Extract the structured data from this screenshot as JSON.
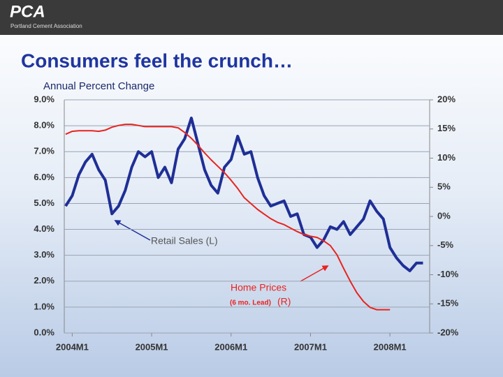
{
  "header": {
    "logo": "PCA",
    "org": "Portland Cement Association"
  },
  "chart_data": {
    "type": "line",
    "title": "Consumers feel the crunch…",
    "y_label": "Annual Percent Change",
    "x": [
      -1,
      0,
      1,
      2,
      3,
      4,
      5,
      6,
      7,
      8,
      9,
      10,
      11,
      12,
      13,
      14,
      15,
      16,
      17,
      18,
      19,
      20,
      21,
      22,
      23,
      24,
      25,
      26,
      27,
      28,
      29,
      30,
      31,
      32,
      33,
      34,
      35,
      36,
      37,
      38,
      39,
      40,
      41,
      42,
      43,
      44,
      45,
      46,
      47,
      48,
      49,
      50,
      51,
      52,
      53
    ],
    "xlim": [
      -1.2,
      54
    ],
    "xticks": [
      {
        "value": 0,
        "label": "2004M1"
      },
      {
        "value": 12,
        "label": "2005M1"
      },
      {
        "value": 24,
        "label": "2006M1"
      },
      {
        "value": 36,
        "label": "2007M1"
      },
      {
        "value": 48,
        "label": "2008M1"
      }
    ],
    "ylim": [
      0,
      9
    ],
    "yticks": [
      {
        "value": 0,
        "label": "0.0%"
      },
      {
        "value": 1,
        "label": "1.0%"
      },
      {
        "value": 2,
        "label": "2.0%"
      },
      {
        "value": 3,
        "label": "3.0%"
      },
      {
        "value": 4,
        "label": "4.0%"
      },
      {
        "value": 5,
        "label": "5.0%"
      },
      {
        "value": 6,
        "label": "6.0%"
      },
      {
        "value": 7,
        "label": "7.0%"
      },
      {
        "value": 8,
        "label": "8.0%"
      },
      {
        "value": 9,
        "label": "9.0%"
      }
    ],
    "y2lim": [
      -20,
      20
    ],
    "y2ticks": [
      {
        "value": -20,
        "label": "-20%"
      },
      {
        "value": -15,
        "label": "-15%"
      },
      {
        "value": -10,
        "label": "-10%"
      },
      {
        "value": -5,
        "label": "-5%"
      },
      {
        "value": 0,
        "label": "0%"
      },
      {
        "value": 5,
        "label": "5%"
      },
      {
        "value": 10,
        "label": "10%"
      },
      {
        "value": 15,
        "label": "15%"
      },
      {
        "value": 20,
        "label": "20%"
      }
    ],
    "grid": true,
    "series": [
      {
        "name": "Retail Sales (L)",
        "color": "#1f2f96",
        "axis": "y",
        "values": [
          4.9,
          5.3,
          6.1,
          6.6,
          6.9,
          6.3,
          5.9,
          4.6,
          4.9,
          5.5,
          6.4,
          7.0,
          6.8,
          7.0,
          6.0,
          6.4,
          5.8,
          7.1,
          7.5,
          8.3,
          7.3,
          6.3,
          5.7,
          5.4,
          6.4,
          6.7,
          7.6,
          6.9,
          7.0,
          6.0,
          5.3,
          4.9,
          5.0,
          5.1,
          4.5,
          4.6,
          3.8,
          3.7,
          3.3,
          3.6,
          4.1,
          4.0,
          4.3,
          3.8,
          4.1,
          4.4,
          5.1,
          4.7,
          4.4,
          3.3,
          2.9,
          2.6,
          2.4,
          2.7,
          2.7
        ]
      },
      {
        "name": "Home Prices",
        "color": "#e8231e",
        "axis": "y2",
        "values": [
          14.1,
          14.6,
          14.7,
          14.7,
          14.7,
          14.6,
          14.8,
          15.3,
          15.6,
          15.8,
          15.8,
          15.6,
          15.4,
          15.4,
          15.4,
          15.4,
          15.4,
          15.2,
          14.4,
          13.4,
          12.2,
          10.9,
          9.7,
          8.6,
          7.5,
          6.2,
          4.8,
          3.2,
          2.2,
          1.2,
          0.4,
          -0.4,
          -1.0,
          -1.4,
          -2.0,
          -2.6,
          -3.1,
          -3.4,
          -3.6,
          -4.2,
          -5.0,
          -6.6,
          -8.9,
          -11.1,
          -13.1,
          -14.6,
          -15.6,
          -16.0,
          -16.0,
          -16.0,
          null,
          null,
          null,
          null,
          null
        ]
      }
    ],
    "annotations": [
      "(6 mo. Lead)",
      "(R)"
    ]
  }
}
